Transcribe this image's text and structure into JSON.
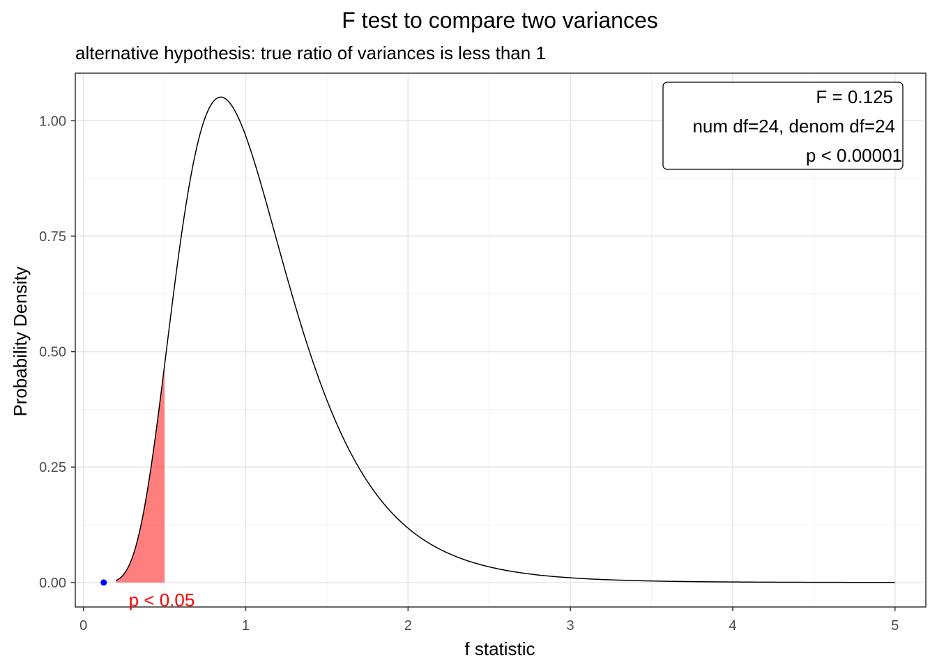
{
  "chart_data": {
    "type": "area",
    "title": "F test to compare two variances",
    "subtitle": "alternative hypothesis: true ratio of variances is less than 1",
    "xlabel": "f statistic",
    "ylabel": "Probability Density",
    "xlim": [
      -0.05,
      5.19
    ],
    "ylim": [
      -0.053,
      1.103
    ],
    "x_ticks": [
      0,
      1,
      2,
      3,
      4,
      5
    ],
    "x_tick_labels": [
      "0",
      "1",
      "2",
      "3",
      "4",
      "5"
    ],
    "y_ticks": [
      0,
      0.25,
      0.5,
      0.75,
      1.0
    ],
    "y_tick_labels": [
      "0.00",
      "0.25",
      "0.50",
      "0.75",
      "1.00"
    ],
    "grid": true,
    "distribution": {
      "name": "F",
      "df1": 24,
      "df2": 24,
      "x_from": 0.2,
      "x_to": 5
    },
    "series": [
      {
        "x": [
          0.2,
          0.3,
          0.4,
          0.5,
          0.6,
          0.7,
          0.8,
          0.9,
          1.0,
          1.2,
          1.4,
          1.6,
          1.8,
          2.0,
          2.5,
          3.0,
          4.0,
          5.0
        ],
        "y": [
          0.004,
          0.063,
          0.247,
          0.498,
          0.763,
          0.947,
          1.045,
          1.042,
          0.968,
          0.728,
          0.477,
          0.294,
          0.176,
          0.106,
          0.032,
          0.011,
          0.002,
          0.0003
        ],
        "color": "#000000"
      }
    ],
    "rejection_region": {
      "x_from": 0.2,
      "x_to": 0.5,
      "color": "#ff0000",
      "opacity": 0.5,
      "label": "p < 0.05",
      "label_color": "#ff0000"
    },
    "observed_point": {
      "x": 0.125,
      "y": 0,
      "color": "#0000ff"
    },
    "stats_box": {
      "lines": [
        "F = 0.125",
        "num df=24, denom df=24",
        "p < 0.00001"
      ],
      "placement": "top-right"
    }
  }
}
